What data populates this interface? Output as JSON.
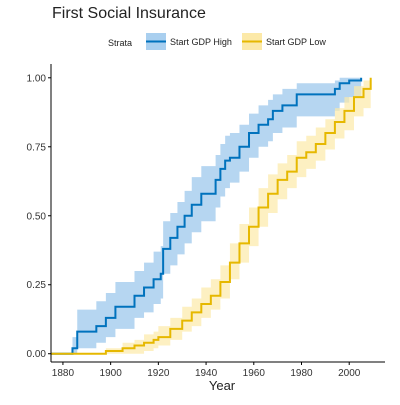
{
  "chart_data": {
    "type": "line",
    "title": "First Social Insurance",
    "xlabel": "Year",
    "ylabel": "",
    "xlim": [
      1875,
      2015
    ],
    "ylim": [
      -0.03,
      1.05
    ],
    "x_ticks": [
      1880,
      1900,
      1920,
      1940,
      1960,
      1980,
      2000
    ],
    "y_ticks": [
      0.0,
      0.25,
      0.5,
      0.75,
      1.0
    ],
    "y_tick_labels": [
      "0.00",
      "0.25",
      "0.50",
      "0.75",
      "1.00"
    ],
    "grid": false,
    "legend": {
      "placement": "top",
      "title": "Strata",
      "entries": [
        "Start GDP High",
        "Start GDP Low"
      ]
    },
    "series": [
      {
        "name": "Start GDP High",
        "color": "#0072BD",
        "band_color": "#A9CFEF",
        "x": [
          1875,
          1884,
          1886,
          1894,
          1898,
          1902,
          1910,
          1914,
          1918,
          1921,
          1922,
          1925,
          1928,
          1931,
          1934,
          1938,
          1944,
          1946,
          1948,
          1950,
          1954,
          1958,
          1962,
          1966,
          1968,
          1972,
          1978,
          1994,
          1996,
          2000,
          2005
        ],
        "y": [
          0.0,
          0.02,
          0.08,
          0.1,
          0.13,
          0.17,
          0.21,
          0.24,
          0.27,
          0.29,
          0.38,
          0.42,
          0.46,
          0.5,
          0.54,
          0.58,
          0.63,
          0.67,
          0.7,
          0.71,
          0.75,
          0.8,
          0.83,
          0.85,
          0.88,
          0.9,
          0.94,
          0.96,
          0.98,
          0.99,
          1.0
        ],
        "lower": [
          0.0,
          0.0,
          0.02,
          0.04,
          0.06,
          0.09,
          0.13,
          0.15,
          0.18,
          0.2,
          0.29,
          0.32,
          0.36,
          0.4,
          0.44,
          0.48,
          0.53,
          0.57,
          0.6,
          0.62,
          0.66,
          0.71,
          0.75,
          0.77,
          0.8,
          0.82,
          0.86,
          0.88,
          0.91,
          0.93,
          1.0
        ],
        "upper": [
          0.0,
          0.06,
          0.16,
          0.19,
          0.22,
          0.26,
          0.3,
          0.33,
          0.37,
          0.39,
          0.48,
          0.51,
          0.55,
          0.59,
          0.64,
          0.68,
          0.72,
          0.76,
          0.79,
          0.8,
          0.83,
          0.87,
          0.9,
          0.92,
          0.94,
          0.96,
          0.98,
          0.99,
          1.0,
          1.0,
          1.0
        ]
      },
      {
        "name": "Start GDP Low",
        "color": "#E6B800",
        "band_color": "#FCE9A8",
        "x": [
          1875,
          1898,
          1905,
          1910,
          1914,
          1918,
          1920,
          1925,
          1930,
          1934,
          1938,
          1942,
          1946,
          1950,
          1954,
          1958,
          1962,
          1966,
          1970,
          1974,
          1978,
          1982,
          1986,
          1990,
          1994,
          1998,
          2002,
          2006,
          2009
        ],
        "y": [
          0.0,
          0.01,
          0.02,
          0.03,
          0.04,
          0.05,
          0.06,
          0.09,
          0.12,
          0.15,
          0.18,
          0.21,
          0.26,
          0.33,
          0.4,
          0.46,
          0.53,
          0.58,
          0.63,
          0.66,
          0.71,
          0.73,
          0.76,
          0.8,
          0.84,
          0.88,
          0.93,
          0.96,
          1.0
        ],
        "lower": [
          0.0,
          0.0,
          0.0,
          0.0,
          0.01,
          0.02,
          0.03,
          0.05,
          0.08,
          0.1,
          0.13,
          0.16,
          0.2,
          0.27,
          0.33,
          0.39,
          0.46,
          0.51,
          0.56,
          0.6,
          0.64,
          0.67,
          0.7,
          0.74,
          0.78,
          0.81,
          0.86,
          0.89,
          1.0
        ],
        "upper": [
          0.0,
          0.02,
          0.04,
          0.05,
          0.07,
          0.08,
          0.1,
          0.13,
          0.17,
          0.2,
          0.24,
          0.27,
          0.32,
          0.4,
          0.47,
          0.53,
          0.6,
          0.65,
          0.69,
          0.72,
          0.77,
          0.79,
          0.82,
          0.85,
          0.89,
          0.93,
          0.97,
          0.99,
          1.0
        ]
      }
    ]
  }
}
